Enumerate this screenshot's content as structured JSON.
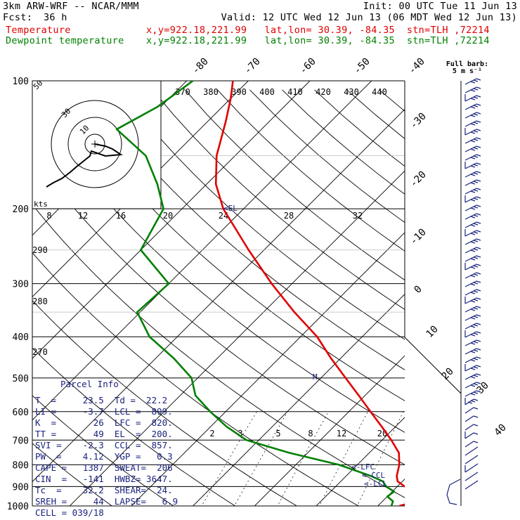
{
  "header": {
    "model": "3km ARW-WRF -- NCAR/MMM",
    "init": "Init: 00 UTC Tue 11 Jun 13",
    "fcst_label": "Fcst:",
    "fcst_value": "36 h",
    "valid": "Valid: 12 UTC Wed 12 Jun 13 (06 MDT Wed 12 Jun 13)",
    "temp_label": "Temperature",
    "dew_label": "Dewpoint temperature",
    "temp_loc": "x,y=922.18,221.99   lat,lon= 30.39, -84.35  stn=TLH ,72214",
    "dew_loc": "x,y=922.18,221.99   lat,lon= 30.39, -84.35  stn=TLH ,72214"
  },
  "wind_key": {
    "line1": "Full barb:",
    "line2": "5 m s⁻¹"
  },
  "parcel": {
    "title": "Parcel Info",
    "rows": [
      "T  =     23.5  Td =  22.2",
      "LI =     -3.7  LCL =  899.",
      "K  =       26  LFC =  820.",
      "TT =       49  EL  =  200.",
      "SVI =    -2.3  CCL =  857.",
      "PW  =    4.12  YGP =   0.3",
      "CAPE =   1387  SWEAT=  206",
      "CIN  =   -141  HWBZ= 3647.",
      "Tc  =    32.2  SHEAR=  24.",
      "SREH =     44  LAPSE=   6.9",
      "CELL = 039/18"
    ]
  },
  "levels": {
    "el": "EL",
    "lfc": "LFC",
    "ccl": "CCL",
    "lcl": "LCL",
    "m": "M"
  },
  "hodograph": {
    "units": "kts",
    "ring_labels": [
      "50",
      "30",
      "10"
    ],
    "speed_labels": [
      "8",
      "12",
      "16",
      "20",
      "24",
      "28",
      "32"
    ]
  },
  "chart_data": {
    "type": "line",
    "title": "",
    "xlabel": "",
    "ylabel": "",
    "y_axis": "pressure (hPa), log scale",
    "ylim": [
      1000,
      100
    ],
    "pressure_ticks": [
      "100",
      "200",
      "300",
      "400",
      "500",
      "600",
      "700",
      "800",
      "900",
      "1000"
    ],
    "isotherm_labels": [
      "-80",
      "-70",
      "-60",
      "-50",
      "-40",
      "-30",
      "-20",
      "-10",
      "0",
      "10",
      "20",
      "30",
      "40"
    ],
    "theta_labels": [
      "370",
      "380",
      "390",
      "400",
      "410",
      "420",
      "430",
      "440"
    ],
    "theta_left_labels": [
      "290",
      "280",
      "270"
    ],
    "mixing_ratio_labels": [
      "2",
      "3",
      "5",
      "8",
      "12",
      "20"
    ],
    "series": [
      {
        "name": "Temperature",
        "color": "#e00000",
        "points": [
          [
            1000,
            23.5
          ],
          [
            975,
            25.5
          ],
          [
            950,
            25
          ],
          [
            925,
            23.5
          ],
          [
            900,
            21.2
          ],
          [
            875,
            19.2
          ],
          [
            850,
            18.2
          ],
          [
            800,
            16.8
          ],
          [
            750,
            14.8
          ],
          [
            700,
            11.5
          ],
          [
            650,
            7.7
          ],
          [
            600,
            3.5
          ],
          [
            550,
            -1.0
          ],
          [
            500,
            -6.0
          ],
          [
            450,
            -11.5
          ],
          [
            400,
            -17.3
          ],
          [
            350,
            -25.0
          ],
          [
            300,
            -33.3
          ],
          [
            250,
            -42.5
          ],
          [
            200,
            -53.3
          ],
          [
            175,
            -58.5
          ],
          [
            150,
            -63.0
          ],
          [
            125,
            -67.0
          ],
          [
            110,
            -70.0
          ],
          [
            100,
            -72.5
          ]
        ]
      },
      {
        "name": "Dewpoint temperature",
        "color": "#008000",
        "points": [
          [
            1000,
            22.2
          ],
          [
            975,
            21.7
          ],
          [
            950,
            20.0
          ],
          [
            925,
            20.3
          ],
          [
            900,
            18.2
          ],
          [
            875,
            16.8
          ],
          [
            850,
            14.0
          ],
          [
            800,
            7.0
          ],
          [
            750,
            -3.0
          ],
          [
            700,
            -12.0
          ],
          [
            650,
            -17.5
          ],
          [
            600,
            -22.5
          ],
          [
            550,
            -27.5
          ],
          [
            500,
            -31.0
          ],
          [
            450,
            -37.0
          ],
          [
            400,
            -44.5
          ],
          [
            350,
            -50.5
          ],
          [
            300,
            -50.0
          ],
          [
            250,
            -60.0
          ],
          [
            200,
            -63.0
          ],
          [
            175,
            -68.0
          ],
          [
            150,
            -74.5
          ],
          [
            130,
            -83.5
          ],
          [
            115,
            -80.5
          ],
          [
            100,
            -79.0
          ]
        ]
      }
    ],
    "hodograph_trace": "wind profile from surface to ~100 hPa plotted in hodograph inset",
    "wind_barbs": "wind barbs along right edge, one per pressure level"
  }
}
